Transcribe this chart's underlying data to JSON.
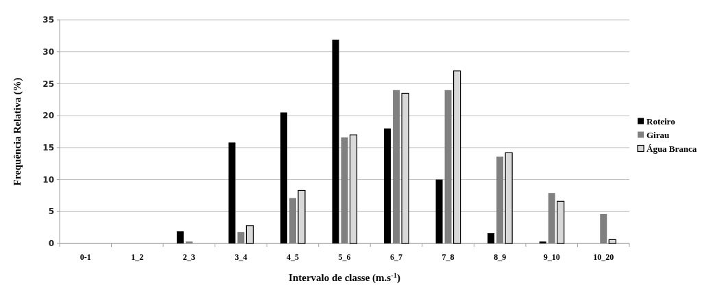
{
  "chart_data": {
    "type": "bar",
    "xlabel": "Intervalo de classe (m.s$^{-1}$)",
    "ylabel": "Frequência Relativa (%)",
    "categories": [
      "0-1",
      "1_2",
      "2_3",
      "3_4",
      "4_5",
      "5_6",
      "6_7",
      "7_8",
      "8_9",
      "9_10",
      "10_20"
    ],
    "series": [
      {
        "name": "Roteiro",
        "color": "#000000",
        "values": [
          0,
          0,
          1.9,
          15.8,
          20.5,
          31.9,
          18,
          10,
          1.6,
          0.3,
          0
        ]
      },
      {
        "name": "Girau",
        "color": "#808080",
        "values": [
          0,
          0,
          0.3,
          1.8,
          7.1,
          16.6,
          24,
          24,
          13.6,
          7.9,
          4.6
        ]
      },
      {
        "name": "Água Branca",
        "color": "#d9d9d9",
        "values": [
          0,
          0,
          0,
          2.8,
          8.3,
          17,
          23.5,
          27,
          14.2,
          6.6,
          0.6
        ]
      }
    ],
    "ylim": [
      0,
      35
    ],
    "yticks": [
      0,
      5,
      10,
      15,
      20,
      25,
      30,
      35
    ],
    "grid": "y",
    "legend": "right"
  }
}
